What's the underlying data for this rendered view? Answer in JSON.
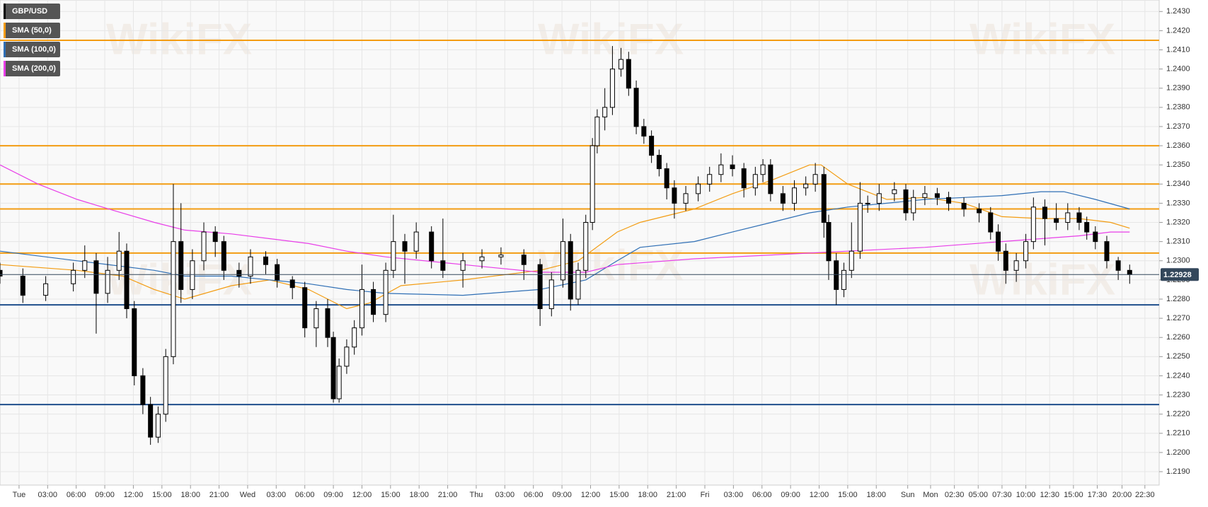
{
  "chart_data": {
    "type": "candlestick",
    "title": "GBP/USD",
    "watermark": "WikiFX",
    "up_color": "#ffffff",
    "down_color": "#000000",
    "ylim": [
      1.2183,
      1.2436
    ],
    "xlim": [
      -2.0,
      119.7
    ],
    "grid": true,
    "yticks": [
      {
        "value": 1.219,
        "label": "1.2190"
      },
      {
        "value": 1.22,
        "label": "1.2200"
      },
      {
        "value": 1.221,
        "label": "1.2210"
      },
      {
        "value": 1.222,
        "label": "1.2220"
      },
      {
        "value": 1.223,
        "label": "1.2230"
      },
      {
        "value": 1.224,
        "label": "1.2240"
      },
      {
        "value": 1.225,
        "label": "1.2250"
      },
      {
        "value": 1.226,
        "label": "1.2260"
      },
      {
        "value": 1.227,
        "label": "1.2270"
      },
      {
        "value": 1.228,
        "label": "1.2280"
      },
      {
        "value": 1.229,
        "label": "1.2290"
      },
      {
        "value": 1.23,
        "label": "1.2300"
      },
      {
        "value": 1.231,
        "label": "1.2310"
      },
      {
        "value": 1.232,
        "label": "1.2320"
      },
      {
        "value": 1.233,
        "label": "1.2330"
      },
      {
        "value": 1.234,
        "label": "1.2340"
      },
      {
        "value": 1.235,
        "label": "1.2350"
      },
      {
        "value": 1.236,
        "label": "1.2360"
      },
      {
        "value": 1.237,
        "label": "1.2370"
      },
      {
        "value": 1.238,
        "label": "1.2380"
      },
      {
        "value": 1.239,
        "label": "1.2390"
      },
      {
        "value": 1.24,
        "label": "1.2400"
      },
      {
        "value": 1.241,
        "label": "1.2410"
      },
      {
        "value": 1.242,
        "label": "1.2420"
      },
      {
        "value": 1.243,
        "label": "1.2430"
      }
    ],
    "xticks": [
      {
        "value": 0,
        "label": "Tue"
      },
      {
        "value": 3,
        "label": "03:00"
      },
      {
        "value": 6,
        "label": "06:00"
      },
      {
        "value": 9,
        "label": "09:00"
      },
      {
        "value": 12,
        "label": "12:00"
      },
      {
        "value": 15,
        "label": "15:00"
      },
      {
        "value": 18,
        "label": "18:00"
      },
      {
        "value": 21,
        "label": "21:00"
      },
      {
        "value": 24,
        "label": "Wed"
      },
      {
        "value": 27,
        "label": "03:00"
      },
      {
        "value": 30,
        "label": "06:00"
      },
      {
        "value": 33,
        "label": "09:00"
      },
      {
        "value": 36,
        "label": "12:00"
      },
      {
        "value": 39,
        "label": "15:00"
      },
      {
        "value": 42,
        "label": "18:00"
      },
      {
        "value": 45,
        "label": "21:00"
      },
      {
        "value": 48,
        "label": "Thu"
      },
      {
        "value": 51,
        "label": "03:00"
      },
      {
        "value": 54,
        "label": "06:00"
      },
      {
        "value": 57,
        "label": "09:00"
      },
      {
        "value": 60,
        "label": "12:00"
      },
      {
        "value": 63,
        "label": "15:00"
      },
      {
        "value": 66,
        "label": "18:00"
      },
      {
        "value": 69,
        "label": "21:00"
      },
      {
        "value": 72,
        "label": "Fri"
      },
      {
        "value": 75,
        "label": "03:00"
      },
      {
        "value": 78,
        "label": "06:00"
      },
      {
        "value": 81,
        "label": "09:00"
      },
      {
        "value": 84,
        "label": "12:00"
      },
      {
        "value": 87,
        "label": "15:00"
      },
      {
        "value": 90,
        "label": "18:00"
      },
      {
        "value": 93.3,
        "label": "Sun"
      },
      {
        "value": 95.7,
        "label": "Mon"
      },
      {
        "value": 98.2,
        "label": "02:30"
      },
      {
        "value": 100.7,
        "label": "05:00"
      },
      {
        "value": 103.2,
        "label": "07:30"
      },
      {
        "value": 105.7,
        "label": "10:00"
      },
      {
        "value": 108.2,
        "label": "12:30"
      },
      {
        "value": 110.7,
        "label": "15:00"
      },
      {
        "value": 113.2,
        "label": "17:30"
      },
      {
        "value": 115.8,
        "label": "20:00"
      },
      {
        "value": 118.2,
        "label": "22:30"
      }
    ],
    "x": [
      -2.0,
      0.4,
      2.8,
      5.7,
      6.9,
      8.1,
      9.3,
      10.5,
      11.3,
      12.1,
      13.0,
      13.8,
      14.6,
      15.4,
      16.2,
      17.0,
      18.2,
      19.4,
      20.6,
      21.5,
      23.1,
      24.3,
      25.9,
      27.1,
      28.7,
      30.0,
      31.2,
      32.4,
      33.0,
      33.6,
      34.4,
      35.2,
      36.0,
      37.2,
      38.5,
      39.3,
      40.5,
      41.7,
      43.3,
      44.5,
      46.6,
      48.6,
      50.6,
      53.0,
      54.7,
      55.9,
      57.1,
      57.9,
      58.7,
      59.5,
      60.2,
      60.7,
      61.5,
      62.3,
      63.2,
      64.0,
      64.8,
      65.6,
      66.4,
      67.2,
      68.0,
      68.8,
      70.0,
      71.3,
      72.5,
      73.7,
      74.9,
      76.1,
      77.3,
      78.1,
      78.9,
      80.2,
      81.4,
      82.6,
      83.6,
      84.5,
      85.0,
      85.8,
      86.6,
      87.4,
      88.3,
      89.1,
      90.3,
      91.9,
      93.1,
      93.9,
      95.1,
      96.4,
      97.6,
      99.2,
      100.8,
      102.0,
      102.8,
      103.6,
      104.7,
      105.7,
      106.5,
      107.7,
      108.9,
      110.1,
      111.3,
      112.1,
      113.0,
      114.2,
      115.4,
      116.6
    ],
    "open": [
      1.2295,
      1.2292,
      1.2282,
      1.2288,
      1.2295,
      1.23,
      1.2283,
      1.2295,
      1.2305,
      1.2275,
      1.224,
      1.2225,
      1.2208,
      1.222,
      1.225,
      1.231,
      1.2285,
      1.23,
      1.2315,
      1.231,
      1.2295,
      1.2292,
      1.2302,
      1.2298,
      1.229,
      1.2286,
      1.2265,
      1.2275,
      1.226,
      1.2228,
      1.2245,
      1.2255,
      1.2265,
      1.2285,
      1.2272,
      1.2295,
      1.231,
      1.2305,
      1.2315,
      1.23,
      1.2295,
      1.23,
      1.2302,
      1.2303,
      1.2298,
      1.2275,
      1.229,
      1.231,
      1.228,
      1.2295,
      1.232,
      1.236,
      1.2375,
      1.238,
      1.24,
      1.2405,
      1.239,
      1.237,
      1.2365,
      1.2355,
      1.2348,
      1.2338,
      1.233,
      1.2335,
      1.234,
      1.2345,
      1.235,
      1.2348,
      1.2338,
      1.2345,
      1.235,
      1.2335,
      1.233,
      1.2338,
      1.234,
      1.2345,
      1.232,
      1.23,
      1.2285,
      1.2295,
      1.2305,
      1.233,
      1.233,
      1.2335,
      1.2337,
      1.2325,
      1.2333,
      1.2335,
      1.2333,
      1.233,
      1.2327,
      1.2325,
      1.2315,
      1.2305,
      1.2295,
      1.23,
      1.231,
      1.2328,
      1.2322,
      1.232,
      1.2325,
      1.232,
      1.2315,
      1.231,
      1.23,
      1.2295
    ],
    "high": [
      1.2299,
      1.2296,
      1.2292,
      1.2299,
      1.2308,
      1.2304,
      1.2302,
      1.2315,
      1.2309,
      1.2279,
      1.2244,
      1.2229,
      1.2224,
      1.2254,
      1.234,
      1.233,
      1.2306,
      1.232,
      1.2318,
      1.2313,
      1.2299,
      1.2306,
      1.2305,
      1.2301,
      1.2292,
      1.2289,
      1.2279,
      1.228,
      1.2263,
      1.2249,
      1.2259,
      1.2269,
      1.2298,
      1.2289,
      1.2299,
      1.2324,
      1.2314,
      1.232,
      1.2318,
      1.2322,
      1.2304,
      1.2306,
      1.2307,
      1.2306,
      1.2301,
      1.2294,
      1.2322,
      1.2314,
      1.2299,
      1.2324,
      1.2364,
      1.2379,
      1.239,
      1.2412,
      1.2411,
      1.2409,
      1.2394,
      1.2374,
      1.2368,
      1.2358,
      1.2351,
      1.2342,
      1.2339,
      1.2344,
      1.2349,
      1.2356,
      1.2355,
      1.2351,
      1.2349,
      1.2353,
      1.2353,
      1.2339,
      1.2342,
      1.2344,
      1.2351,
      1.2349,
      1.2324,
      1.2304,
      1.2299,
      1.232,
      1.2341,
      1.2334,
      1.234,
      1.2341,
      1.234,
      1.2337,
      1.2339,
      1.2338,
      1.2336,
      1.2333,
      1.233,
      1.2328,
      1.2319,
      1.2309,
      1.2304,
      1.2314,
      1.2333,
      1.2332,
      1.233,
      1.233,
      1.2328,
      1.2323,
      1.2318,
      1.2313,
      1.2302,
      1.2298
    ],
    "low": [
      1.2288,
      1.2278,
      1.2279,
      1.2284,
      1.2291,
      1.2262,
      1.2278,
      1.229,
      1.227,
      1.2235,
      1.222,
      1.2204,
      1.2205,
      1.2216,
      1.2246,
      1.2278,
      1.228,
      1.2295,
      1.2302,
      1.229,
      1.2286,
      1.2288,
      1.2293,
      1.2286,
      1.228,
      1.226,
      1.2255,
      1.2255,
      1.2226,
      1.2226,
      1.2241,
      1.2251,
      1.2261,
      1.2268,
      1.2268,
      1.2291,
      1.2288,
      1.2301,
      1.2296,
      1.2291,
      1.2286,
      1.2296,
      1.2298,
      1.229,
      1.2266,
      1.2271,
      1.2286,
      1.2274,
      1.2277,
      1.2291,
      1.2316,
      1.2356,
      1.2368,
      1.2376,
      1.2396,
      1.2386,
      1.2366,
      1.2361,
      1.2351,
      1.2344,
      1.2332,
      1.2322,
      1.2326,
      1.2331,
      1.2336,
      1.2341,
      1.2344,
      1.2333,
      1.2334,
      1.2341,
      1.2331,
      1.2326,
      1.2326,
      1.2334,
      1.2336,
      1.2312,
      1.229,
      1.2277,
      1.2281,
      1.2291,
      1.2301,
      1.2325,
      1.2326,
      1.2331,
      1.2321,
      1.2321,
      1.2329,
      1.2329,
      1.2326,
      1.2323,
      1.232,
      1.2311,
      1.23,
      1.2288,
      1.2289,
      1.2296,
      1.2306,
      1.2308,
      1.2316,
      1.2316,
      1.2316,
      1.2311,
      1.2306,
      1.2296,
      1.229,
      1.2288
    ],
    "close": [
      1.2292,
      1.2282,
      1.2288,
      1.2295,
      1.23,
      1.2283,
      1.2295,
      1.2305,
      1.2275,
      1.224,
      1.2225,
      1.2208,
      1.222,
      1.225,
      1.231,
      1.2285,
      1.23,
      1.2315,
      1.231,
      1.2295,
      1.2292,
      1.2302,
      1.2298,
      1.229,
      1.2286,
      1.2265,
      1.2275,
      1.226,
      1.2228,
      1.2245,
      1.2255,
      1.2265,
      1.2285,
      1.2272,
      1.2295,
      1.231,
      1.2305,
      1.2315,
      1.23,
      1.2295,
      1.23,
      1.2302,
      1.2303,
      1.2298,
      1.2275,
      1.229,
      1.231,
      1.228,
      1.2295,
      1.232,
      1.236,
      1.2375,
      1.238,
      1.24,
      1.2405,
      1.239,
      1.237,
      1.2365,
      1.2355,
      1.2348,
      1.2338,
      1.233,
      1.2335,
      1.234,
      1.2345,
      1.235,
      1.2348,
      1.2338,
      1.2345,
      1.235,
      1.2335,
      1.233,
      1.2338,
      1.234,
      1.2345,
      1.232,
      1.23,
      1.2285,
      1.2295,
      1.2305,
      1.233,
      1.233,
      1.2335,
      1.2337,
      1.2325,
      1.2333,
      1.2335,
      1.2333,
      1.233,
      1.2327,
      1.2325,
      1.2315,
      1.2305,
      1.2295,
      1.23,
      1.231,
      1.2328,
      1.2322,
      1.232,
      1.2325,
      1.232,
      1.2315,
      1.231,
      1.23,
      1.2295,
      1.22928
    ],
    "last_price": {
      "value": 1.22928,
      "label": "1.22928"
    },
    "series": [
      {
        "name": "SMA (50,0)",
        "color": "#f39c12",
        "x": [
          -2.0,
          6.1,
          10.9,
          14.2,
          17.4,
          22.3,
          26.3,
          30.4,
          34.4,
          36.8,
          40.1,
          46.6,
          54.7,
          58.7,
          62.8,
          65.2,
          70.9,
          74.9,
          79.0,
          83.0,
          84.2,
          87.0,
          91.1,
          95.1,
          99.2,
          103.2,
          107.3,
          111.3,
          114.6,
          116.6
        ],
        "values": [
          1.2298,
          1.2295,
          1.2292,
          1.2285,
          1.228,
          1.2287,
          1.229,
          1.2285,
          1.2275,
          1.2278,
          1.2287,
          1.229,
          1.2295,
          1.23,
          1.2315,
          1.232,
          1.2327,
          1.2335,
          1.2342,
          1.235,
          1.235,
          1.234,
          1.2332,
          1.2333,
          1.233,
          1.2323,
          1.2322,
          1.2322,
          1.232,
          1.2317
        ]
      },
      {
        "name": "SMA (100,0)",
        "color": "#2f6fb5",
        "x": [
          -2.0,
          6.1,
          14.2,
          17.4,
          22.3,
          30.4,
          34.4,
          38.5,
          46.6,
          54.7,
          59.5,
          62.8,
          65.2,
          70.9,
          74.9,
          79.0,
          83.0,
          87.0,
          91.1,
          95.1,
          99.2,
          103.2,
          107.3,
          109.7,
          113.0,
          116.6
        ],
        "values": [
          1.2305,
          1.23,
          1.2295,
          1.2292,
          1.2292,
          1.2288,
          1.2285,
          1.2283,
          1.2282,
          1.2285,
          1.229,
          1.23,
          1.2307,
          1.231,
          1.2315,
          1.232,
          1.2325,
          1.2328,
          1.233,
          1.2332,
          1.2333,
          1.2334,
          1.2336,
          1.2336,
          1.2332,
          1.2327
        ]
      },
      {
        "name": "SMA (200,0)",
        "color": "#e83ee8",
        "x": [
          -2.0,
          2.0,
          6.1,
          10.1,
          14.2,
          17.4,
          22.3,
          30.4,
          34.4,
          38.5,
          46.6,
          54.7,
          59.5,
          62.8,
          70.9,
          79.0,
          83.0,
          87.0,
          95.1,
          103.2,
          111.3,
          114.6,
          116.6
        ],
        "values": [
          1.235,
          1.234,
          1.2332,
          1.2326,
          1.232,
          1.2316,
          1.2314,
          1.2309,
          1.2305,
          1.2302,
          1.2298,
          1.2294,
          1.2294,
          1.2298,
          1.2301,
          1.2303,
          1.2304,
          1.2305,
          1.2307,
          1.231,
          1.2313,
          1.2315,
          1.2315
        ]
      }
    ],
    "levels": [
      {
        "value": 1.2415,
        "color": "#f39c12"
      },
      {
        "value": 1.236,
        "color": "#f39c12"
      },
      {
        "value": 1.234,
        "color": "#f39c12"
      },
      {
        "value": 1.2327,
        "color": "#f39c12"
      },
      {
        "value": 1.2304,
        "color": "#f39c12"
      },
      {
        "value": 1.2277,
        "color": "#1f4e8c"
      },
      {
        "value": 1.2225,
        "color": "#1f4e8c"
      }
    ]
  }
}
